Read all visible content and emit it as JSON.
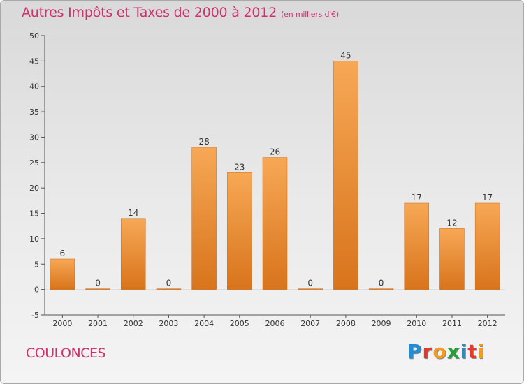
{
  "header": {
    "title": "Autres Impôts et Taxes de 2000 à 2012",
    "subtitle": "(en milliers d'€)"
  },
  "footer": {
    "location": "COULONCES",
    "logo": {
      "letters": [
        "P",
        "r",
        "o",
        "x",
        "i",
        "t",
        "i"
      ],
      "colors": [
        "#1e8fd6",
        "#e23a2f",
        "#f29b1d",
        "#2a9d3b",
        "#1e8fd6",
        "#e23a2f",
        "#f29b1d"
      ]
    }
  },
  "chart_data": {
    "type": "bar",
    "title": "Autres Impôts et Taxes de 2000 à 2012",
    "subtitle": "(en milliers d'€)",
    "xlabel": "",
    "ylabel": "",
    "categories": [
      "2000",
      "2001",
      "2002",
      "2003",
      "2004",
      "2005",
      "2006",
      "2007",
      "2008",
      "2009",
      "2010",
      "2011",
      "2012"
    ],
    "values": [
      6,
      0,
      14,
      0,
      28,
      23,
      26,
      0,
      45,
      0,
      17,
      12,
      17
    ],
    "data_labels": [
      "6",
      "0",
      "14",
      "0",
      "28",
      "23",
      "26",
      "0",
      "45",
      "0",
      "17",
      "12",
      "17"
    ],
    "ylim": [
      -5,
      50
    ],
    "yticks": [
      -5,
      0,
      5,
      10,
      15,
      20,
      25,
      30,
      35,
      40,
      45,
      50
    ],
    "grid": false,
    "legend": "none",
    "bar_color_top": "#f7a855",
    "bar_color_bottom": "#d8741c",
    "text_color": "#333333"
  }
}
